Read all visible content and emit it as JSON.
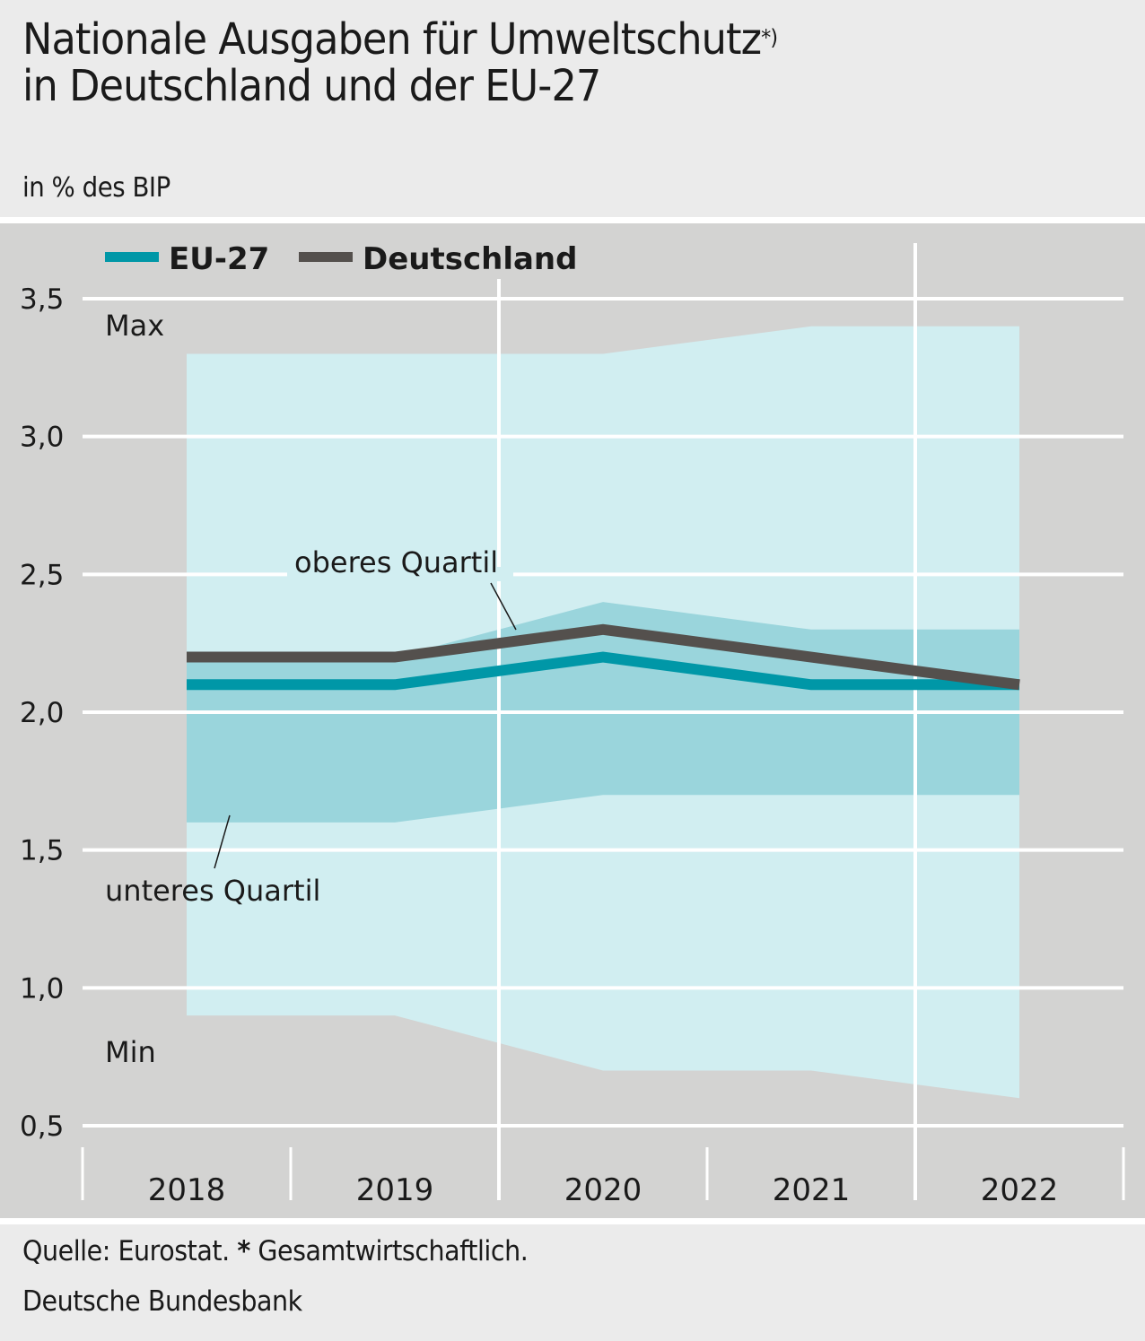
{
  "header": {
    "title_line1": "Nationale Ausgaben für Umweltschutz",
    "title_sup": "*)",
    "title_line2": "in Deutschland und der EU-27",
    "subtitle": "in % des BIP"
  },
  "footer": {
    "source_prefix": "Quelle: Eurostat. ",
    "asterisk": "*",
    "source_note": " Gesamtwirtschaftlich.",
    "publisher": "Deutsche Bundesbank"
  },
  "colors": {
    "eu27": "#0097a7",
    "deutschland": "#54504d",
    "range_min_max": "#d1eef1",
    "range_quartile": "#9ad5dc",
    "plot_background": "#d3d3d2",
    "gridline": "#ffffff"
  },
  "chart_data": {
    "type": "line",
    "title": "Nationale Ausgaben für Umweltschutz*) in Deutschland und der EU-27",
    "subtitle": "in % des BIP",
    "xlabel": "",
    "ylabel": "in % des BIP",
    "x": [
      "2018",
      "2019",
      "2020",
      "2021",
      "2022"
    ],
    "ylim": [
      0.5,
      3.5
    ],
    "yticks": [
      0.5,
      1.0,
      1.5,
      2.0,
      2.5,
      3.0,
      3.5
    ],
    "ytick_labels": [
      "0,5",
      "1,0",
      "1,5",
      "2,0",
      "2,5",
      "3,0",
      "3,5"
    ],
    "grid": true,
    "legend": {
      "placement": "top-left",
      "entries": [
        "EU-27",
        "Deutschland"
      ]
    },
    "series": [
      {
        "name": "EU-27",
        "values": [
          2.1,
          2.1,
          2.2,
          2.1,
          2.1
        ]
      },
      {
        "name": "Deutschland",
        "values": [
          2.2,
          2.2,
          2.3,
          2.2,
          2.1
        ]
      }
    ],
    "bands": [
      {
        "name": "Min-Max",
        "lower": [
          0.9,
          0.9,
          0.7,
          0.7,
          0.6
        ],
        "upper": [
          3.3,
          3.3,
          3.3,
          3.4,
          3.4
        ]
      },
      {
        "name": "Interquartil",
        "lower": [
          1.6,
          1.6,
          1.7,
          1.7,
          1.7
        ],
        "upper": [
          2.2,
          2.2,
          2.4,
          2.3,
          2.3
        ]
      }
    ],
    "annotations": [
      {
        "text": "Max"
      },
      {
        "text": "Min"
      },
      {
        "text": "oberes Quartil"
      },
      {
        "text": "unteres Quartil"
      }
    ]
  }
}
